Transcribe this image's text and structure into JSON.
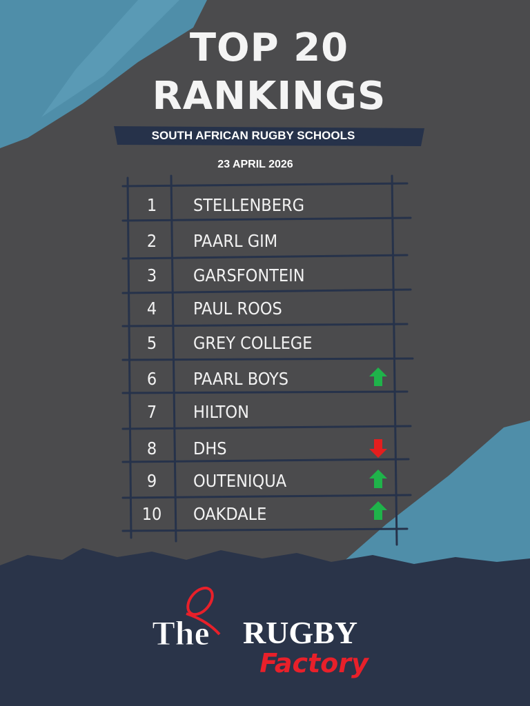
{
  "header": {
    "title": [
      "TOP 20",
      "RANKINGS"
    ],
    "subtitle": "SOUTH AFRICAN RUGBY SCHOOLS",
    "date": "23 APRIL 2026"
  },
  "table": {
    "rows": [
      [
        "1",
        "STELLENBERG"
      ],
      [
        "2",
        "PAARL GIM"
      ],
      [
        "3",
        "GARSFONTEIN"
      ],
      [
        "4",
        "PAUL ROOS"
      ],
      [
        "5",
        "GREY COLLEGE"
      ],
      [
        "6",
        "PAARL BOYS"
      ],
      [
        "7",
        "HILTON"
      ],
      [
        "8",
        "DHS"
      ],
      [
        "9",
        "OUTENIQUA"
      ],
      [
        "10",
        "OAKDALE"
      ]
    ]
  },
  "footer": {
    "logo": [
      "The",
      "RUGBY",
      "Factory"
    ]
  }
}
